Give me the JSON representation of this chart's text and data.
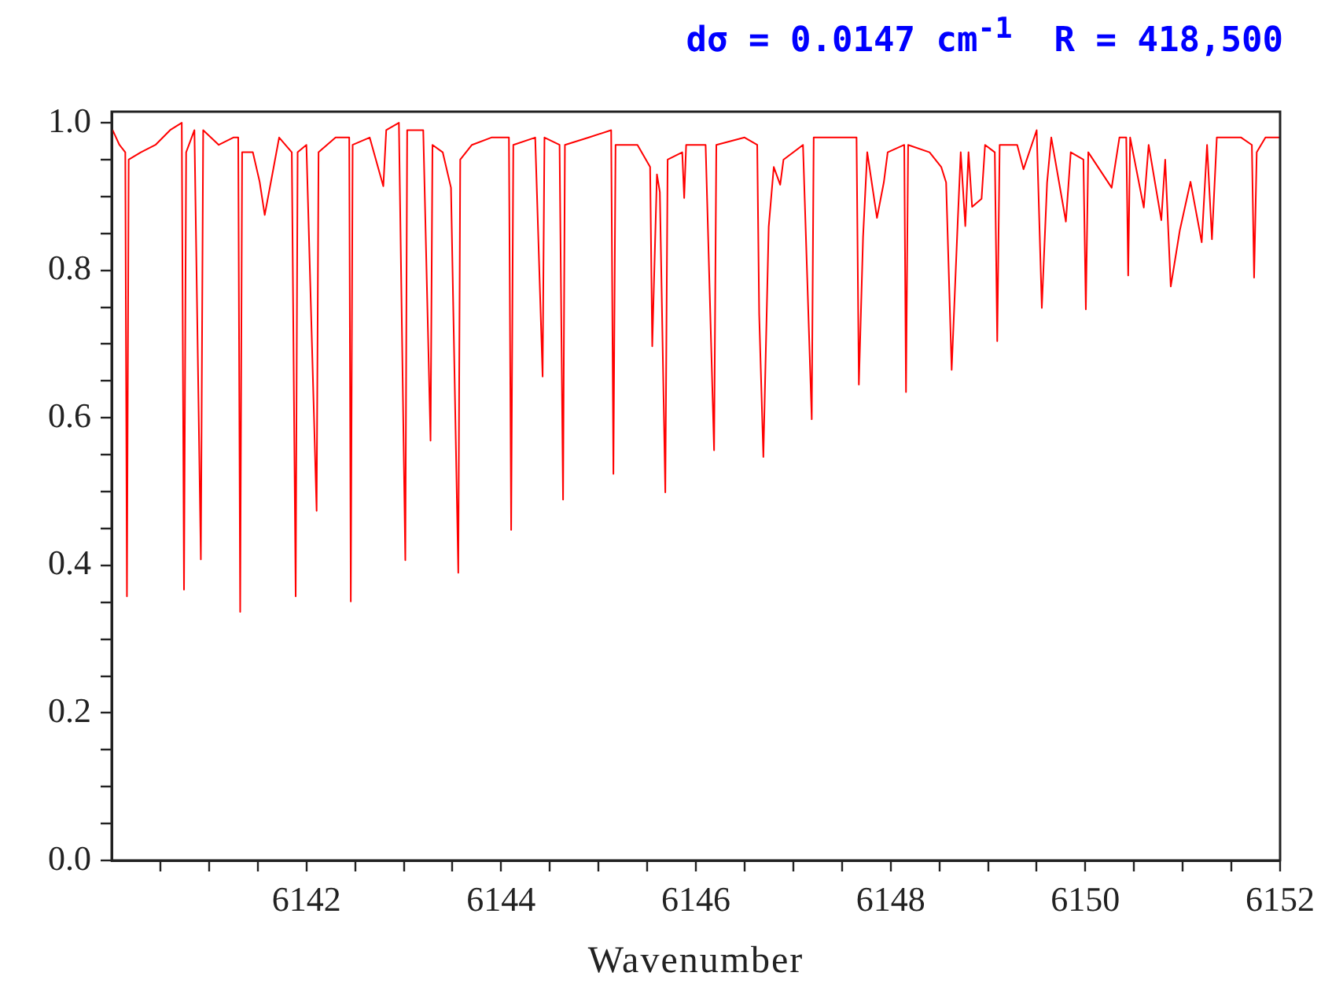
{
  "chart_data": {
    "type": "line",
    "title": "dσ = 0.0147 cm$^{-1}$  R = 418,500",
    "xlabel": "Wavenumber",
    "xlim": [
      6140,
      6152
    ],
    "xticks": [
      {
        "value": 6140.5,
        "label": null
      },
      {
        "value": 6141,
        "label": null
      },
      {
        "value": 6141.5,
        "label": null
      },
      6142,
      {
        "value": 6142.5,
        "label": null
      },
      {
        "value": 6143,
        "label": null
      },
      {
        "value": 6143.5,
        "label": null
      },
      6144,
      {
        "value": 6144.5,
        "label": null
      },
      {
        "value": 6145,
        "label": null
      },
      {
        "value": 6145.5,
        "label": null
      },
      6146,
      {
        "value": 6146.5,
        "label": null
      },
      {
        "value": 6147,
        "label": null
      },
      {
        "value": 6147.5,
        "label": null
      },
      6148,
      {
        "value": 6148.5,
        "label": null
      },
      {
        "value": 6149,
        "label": null
      },
      {
        "value": 6149.5,
        "label": null
      },
      6150,
      {
        "value": 6150.5,
        "label": null
      },
      {
        "value": 6151,
        "label": null
      },
      {
        "value": 6151.5,
        "label": null
      },
      6152
    ],
    "ylim": [
      0,
      1.015
    ],
    "yticks": [
      {
        "value": 0,
        "label": "0.0"
      },
      {
        "value": 0.05,
        "label": null
      },
      {
        "value": 0.1,
        "label": null
      },
      {
        "value": 0.15,
        "label": null
      },
      0.2,
      {
        "value": 0.25,
        "label": null
      },
      {
        "value": 0.3,
        "label": null
      },
      {
        "value": 0.35,
        "label": null
      },
      0.4,
      {
        "value": 0.45,
        "label": null
      },
      {
        "value": 0.5,
        "label": null
      },
      {
        "value": 0.55,
        "label": null
      },
      0.6,
      {
        "value": 0.65,
        "label": null
      },
      {
        "value": 0.7,
        "label": null
      },
      {
        "value": 0.75,
        "label": null
      },
      0.8,
      {
        "value": 0.85,
        "label": null
      },
      {
        "value": 0.9,
        "label": null
      },
      {
        "value": 0.95,
        "label": null
      },
      {
        "value": 1,
        "label": "1.0"
      }
    ],
    "grid": false,
    "legend": false,
    "marker": "none",
    "line_style": "solid",
    "series": [
      {
        "color": "#ff0000",
        "x": [
          6140.01,
          6140.08,
          6140.14,
          6140.157,
          6140.175,
          6140.3,
          6140.45,
          6140.6,
          6140.72,
          6140.743,
          6140.765,
          6140.85,
          6140.916,
          6140.94,
          6141.1,
          6141.25,
          6141.3,
          6141.32,
          6141.34,
          6141.45,
          6141.52,
          6141.572,
          6141.65,
          6141.72,
          6141.85,
          6141.89,
          6141.91,
          6142.0,
          6142.105,
          6142.125,
          6142.3,
          6142.44,
          6142.456,
          6142.475,
          6142.65,
          6142.79,
          6142.82,
          6142.95,
          6143.016,
          6143.035,
          6143.2,
          6143.275,
          6143.295,
          6143.4,
          6143.485,
          6143.56,
          6143.58,
          6143.7,
          6143.9,
          6144.08,
          6144.103,
          6144.125,
          6144.35,
          6144.426,
          6144.445,
          6144.6,
          6144.636,
          6144.655,
          6144.9,
          6145.13,
          6145.153,
          6145.175,
          6145.4,
          6145.53,
          6145.552,
          6145.6,
          6145.63,
          6145.686,
          6145.71,
          6145.86,
          6145.88,
          6145.9,
          6146.1,
          6146.187,
          6146.21,
          6146.5,
          6146.63,
          6146.65,
          6146.693,
          6146.748,
          6146.8,
          6146.866,
          6146.9,
          6147.1,
          6147.19,
          6147.21,
          6147.5,
          6147.65,
          6147.674,
          6147.717,
          6147.76,
          6147.86,
          6147.93,
          6147.97,
          6148.14,
          6148.158,
          6148.18,
          6148.4,
          6148.52,
          6148.57,
          6148.627,
          6148.69,
          6148.72,
          6148.767,
          6148.8,
          6148.837,
          6148.934,
          6148.97,
          6149.07,
          6149.095,
          6149.12,
          6149.3,
          6149.365,
          6149.5,
          6149.553,
          6149.607,
          6149.65,
          6149.8,
          6149.85,
          6149.98,
          6150.005,
          6150.03,
          6150.27,
          6150.35,
          6150.42,
          6150.44,
          6150.46,
          6150.6,
          6150.65,
          6150.78,
          6150.82,
          6150.877,
          6150.97,
          6151.08,
          6151.195,
          6151.25,
          6151.3,
          6151.35,
          6151.6,
          6151.71,
          6151.733,
          6151.76,
          6151.85,
          6152.0
        ],
        "values": [
          0.99,
          0.97,
          0.96,
          0.358,
          0.95,
          0.96,
          0.97,
          0.99,
          1.0,
          0.367,
          0.96,
          0.99,
          0.408,
          0.99,
          0.97,
          0.98,
          0.98,
          0.337,
          0.96,
          0.96,
          0.92,
          0.875,
          0.93,
          0.98,
          0.96,
          0.358,
          0.96,
          0.97,
          0.474,
          0.96,
          0.98,
          0.98,
          0.351,
          0.97,
          0.98,
          0.914,
          0.99,
          1.0,
          0.407,
          0.99,
          0.99,
          0.569,
          0.97,
          0.96,
          0.912,
          0.39,
          0.95,
          0.97,
          0.98,
          0.98,
          0.448,
          0.97,
          0.98,
          0.656,
          0.98,
          0.97,
          0.489,
          0.97,
          0.98,
          0.99,
          0.524,
          0.97,
          0.97,
          0.94,
          0.697,
          0.93,
          0.906,
          0.499,
          0.95,
          0.96,
          0.898,
          0.97,
          0.97,
          0.556,
          0.97,
          0.98,
          0.97,
          0.741,
          0.547,
          0.859,
          0.94,
          0.916,
          0.95,
          0.97,
          0.598,
          0.98,
          0.98,
          0.98,
          0.645,
          0.845,
          0.96,
          0.871,
          0.919,
          0.96,
          0.97,
          0.635,
          0.97,
          0.96,
          0.94,
          0.919,
          0.665,
          0.868,
          0.96,
          0.86,
          0.96,
          0.886,
          0.897,
          0.97,
          0.96,
          0.704,
          0.97,
          0.97,
          0.937,
          0.99,
          0.749,
          0.919,
          0.98,
          0.866,
          0.96,
          0.95,
          0.747,
          0.96,
          0.912,
          0.98,
          0.98,
          0.793,
          0.98,
          0.885,
          0.97,
          0.868,
          0.95,
          0.778,
          0.854,
          0.92,
          0.838,
          0.97,
          0.842,
          0.98,
          0.98,
          0.97,
          0.79,
          0.96,
          0.98,
          0.98
        ]
      }
    ]
  }
}
